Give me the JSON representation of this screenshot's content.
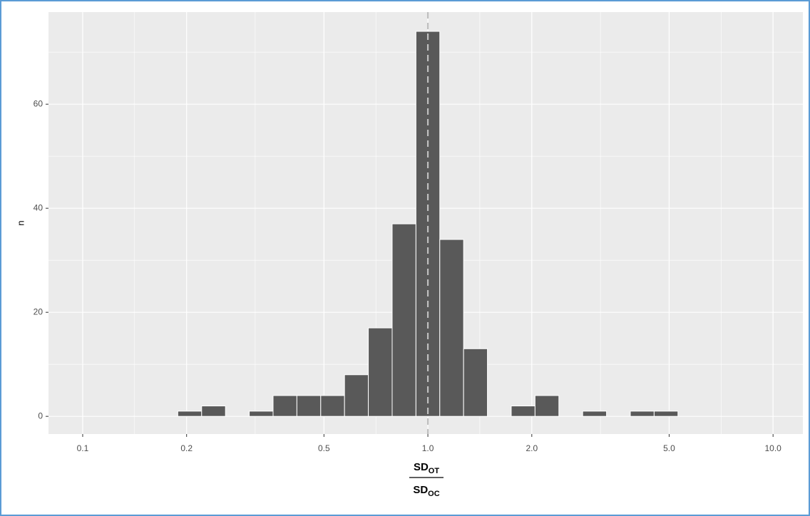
{
  "chart_data": {
    "type": "histogram",
    "bins": [
      0.1886,
      0.2211,
      0.2592,
      0.3038,
      0.3561,
      0.4174,
      0.4893,
      0.5735,
      0.6722,
      0.788,
      0.9236,
      1.0827,
      1.269,
      1.4876,
      1.7437,
      2.044,
      2.396,
      2.8085,
      3.2921,
      3.8589,
      4.5233,
      5.3021
    ],
    "counts": [
      1,
      2,
      0,
      1,
      4,
      4,
      4,
      8,
      17,
      37,
      74,
      34,
      13,
      0,
      2,
      4,
      0,
      1,
      0,
      1,
      1
    ],
    "color": "#595959",
    "xscale": "log",
    "xlim": [
      0.0796,
      12.2
    ],
    "xticks": [
      0.1,
      0.2,
      0.5,
      {
        "value": 1,
        "label": "1.0"
      },
      {
        "value": 2,
        "label": "2.0"
      },
      {
        "value": 5,
        "label": "5.0"
      },
      {
        "value": 10,
        "label": "10.0"
      }
    ],
    "xminorticks": [
      0.141,
      0.316,
      0.707,
      1.414,
      3.162,
      7.071
    ],
    "ylim": [
      -3.4,
      77.7
    ],
    "yticks": [
      0,
      20,
      40,
      60
    ],
    "yminorticks": [
      10,
      30,
      50,
      70
    ],
    "grid": true,
    "vline": {
      "x": 1,
      "color": "#bfbfbf",
      "style": "dashed"
    },
    "ylabel": "n",
    "xlabel": {
      "numerator": {
        "text": "SD",
        "sub": "OT"
      },
      "denominator": {
        "text": "SD",
        "sub": "OC"
      }
    }
  }
}
